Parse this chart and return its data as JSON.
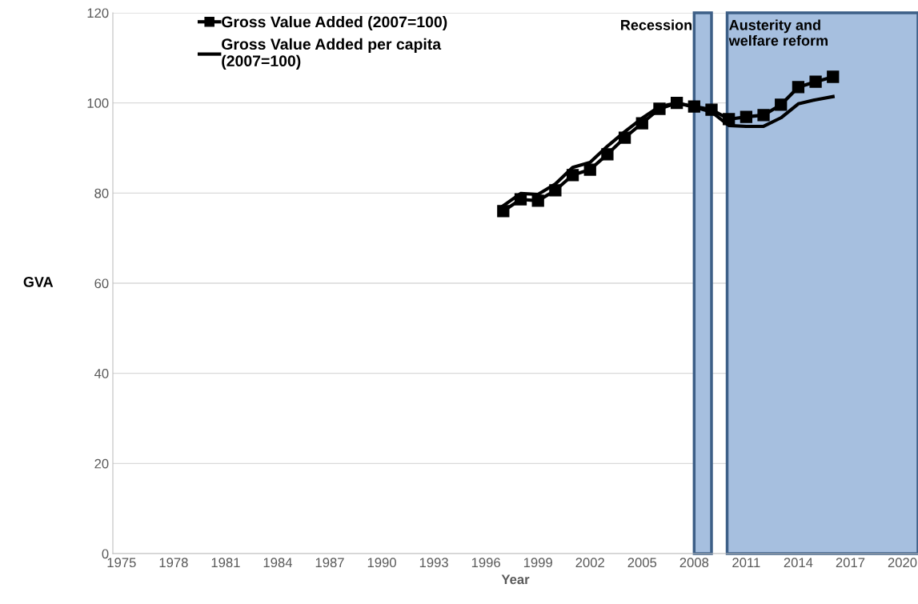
{
  "chart_data": {
    "type": "line",
    "xlabel": "Year",
    "ylabel": "GVA",
    "x": [
      1997,
      1998,
      1999,
      2000,
      2001,
      2002,
      2003,
      2004,
      2005,
      2006,
      2007,
      2008,
      2009,
      2010,
      2011,
      2012,
      2013,
      2014,
      2015,
      2016
    ],
    "series": [
      {
        "name": "Gross Value Added (2007=100)",
        "color": "#000000",
        "marker": "square",
        "values": [
          76.0,
          78.6,
          78.3,
          80.6,
          84.0,
          85.2,
          88.6,
          92.3,
          95.5,
          98.7,
          100,
          99.2,
          98.5,
          96.4,
          96.9,
          97.3,
          99.6,
          103.5,
          104.7,
          105.8
        ]
      },
      {
        "name": "Gross Value Added per capita\n(2007=100)",
        "color": "#000000",
        "marker": "none",
        "values": [
          77.2,
          79.9,
          79.7,
          82.0,
          85.7,
          86.8,
          90.4,
          93.6,
          96.6,
          99.2,
          100,
          99.1,
          98.0,
          95.0,
          94.8,
          94.8,
          96.7,
          99.8,
          100.7,
          101.4
        ]
      }
    ],
    "xlim": [
      1974.5,
      2020.9
    ],
    "xticks": [
      1975,
      1978,
      1981,
      1984,
      1987,
      1990,
      1993,
      1996,
      1999,
      2002,
      2005,
      2008,
      2011,
      2014,
      2017,
      2020
    ],
    "ylim": [
      0,
      120
    ],
    "yticks": [
      0,
      20,
      40,
      60,
      80,
      100,
      120
    ],
    "bands": [
      {
        "axis": "x",
        "from": 2008.0,
        "to": 2009.0,
        "label": "Recession",
        "color": "#a6bfdf"
      },
      {
        "axis": "x",
        "from": 2009.9,
        "to": 2020.9,
        "label": "Austerity and\nwelfare reform",
        "color": "#a6bfdf"
      }
    ],
    "grid": "y",
    "legend": "top left",
    "line_style": "solid"
  }
}
